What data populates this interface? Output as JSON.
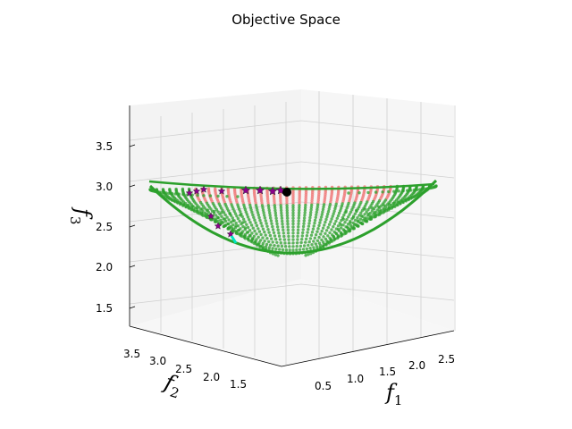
{
  "chart_data": {
    "type": "scatter3d",
    "title": "Objective Space",
    "xlabel": "f",
    "xlabel_sub": "1",
    "ylabel": "f",
    "ylabel_sub": "2",
    "zlabel": "f",
    "zlabel_sub": "3",
    "xlim": [
      0.2,
      2.7
    ],
    "ylim": [
      1.3,
      3.8
    ],
    "zlim": [
      1.3,
      3.9
    ],
    "x_ticks": [
      "0.5",
      "1.0",
      "1.5",
      "2.0",
      "2.5"
    ],
    "y_ticks": [
      "1.5",
      "2.0",
      "2.5",
      "3.0",
      "3.5"
    ],
    "z_ticks": [
      "1.5",
      "2.0",
      "2.5",
      "3.0",
      "3.5"
    ],
    "grid": true,
    "legend": "none",
    "colors": {
      "surface_green": "#2ca02c",
      "surface_pink": "#f08080",
      "boundary": "#2ca02c",
      "stars": "#8b008b",
      "reference_point": "#000000",
      "highlight": "#00e5c0"
    },
    "series": [
      {
        "kind": "pareto-front-points",
        "color": "green",
        "description_values": "dense spherical-cap surface of f1,f2,f3 points"
      },
      {
        "kind": "pareto-front-points",
        "color": "pink",
        "description_values": "upper band near f3 ≈ 3.0"
      },
      {
        "kind": "stars",
        "color": "purple",
        "points": [
          [
            0.55,
            3.3,
            2.9
          ],
          [
            0.65,
            3.25,
            2.93
          ],
          [
            0.8,
            3.1,
            2.97
          ],
          [
            1.05,
            2.95,
            3.0
          ],
          [
            1.25,
            2.8,
            3.0
          ],
          [
            1.4,
            2.65,
            3.0
          ],
          [
            1.55,
            2.55,
            3.0
          ],
          [
            1.7,
            2.45,
            3.0
          ],
          [
            0.7,
            3.1,
            2.55
          ],
          [
            0.75,
            3.0,
            2.4
          ],
          [
            0.85,
            2.9,
            2.25
          ]
        ]
      },
      {
        "kind": "reference-point",
        "color": "black",
        "points": [
          [
            1.75,
            2.4,
            3.0
          ]
        ]
      }
    ]
  }
}
